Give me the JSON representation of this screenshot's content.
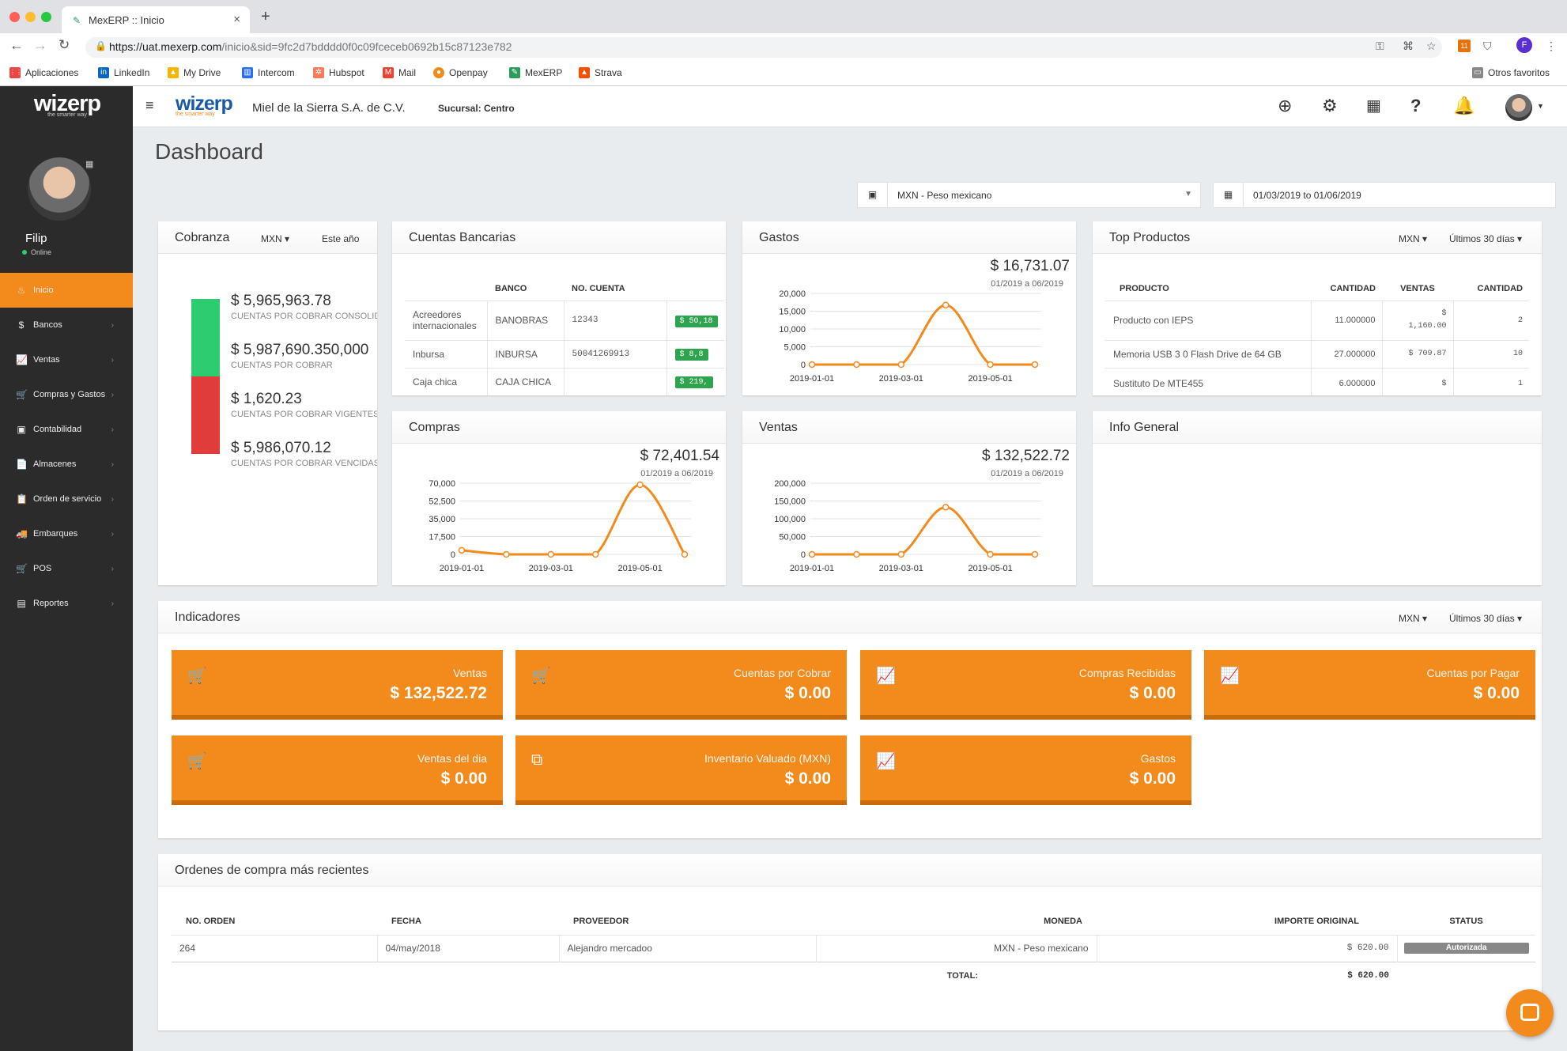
{
  "browser": {
    "tab_title": "MexERP :: Inicio",
    "url_host": "https://uat.mexerp.com",
    "url_path": "/inicio&sid=9fc2d7bdddd0f0c09fceceb0692b15c87123e782",
    "new_tab": "+",
    "close": "×",
    "ext_badge": "11",
    "profile_letter": "F"
  },
  "bookmarks": [
    "Aplicaciones",
    "LinkedIn",
    "My Drive",
    "Intercom",
    "Hubspot",
    "Mail",
    "Openpay",
    "MexERP",
    "Strava"
  ],
  "bookmarks_other": "Otros favoritos",
  "sidebar": {
    "logo": "wizerp",
    "logo_tagline": "the smarter way",
    "user_name": "Filip",
    "user_status": "Online",
    "items": [
      {
        "label": "Inicio",
        "icon": "♨"
      },
      {
        "label": "Bancos",
        "icon": "$"
      },
      {
        "label": "Ventas",
        "icon": "📈"
      },
      {
        "label": "Compras y Gastos",
        "icon": "🛒"
      },
      {
        "label": "Contabilidad",
        "icon": "▣"
      },
      {
        "label": "Almacenes",
        "icon": "📄"
      },
      {
        "label": "Orden de servicio",
        "icon": "📋"
      },
      {
        "label": "Embarques",
        "icon": "🚚"
      },
      {
        "label": "POS",
        "icon": "🛒"
      },
      {
        "label": "Reportes",
        "icon": "▤"
      }
    ]
  },
  "topbar": {
    "logo": "wizerp",
    "logo_tagline": "the smarter way",
    "company": "Miel de la Sierra S.A. de C.V.",
    "branch": "Sucursal: Centro"
  },
  "page_title": "Dashboard",
  "filters": {
    "currency": "MXN - Peso mexicano",
    "date_range": "01/03/2019 to 01/06/2019"
  },
  "cobranza": {
    "title": "Cobranza",
    "currency": "MXN",
    "period": "Este año",
    "items": [
      {
        "value": "$ 5,965,963.78",
        "label": "CUENTAS POR COBRAR CONSOLIDADAS"
      },
      {
        "value": "$ 5,987,690.350,000",
        "label": "CUENTAS POR COBRAR"
      },
      {
        "value": "$ 1,620.23",
        "label": "CUENTAS POR COBRAR VIGENTES"
      },
      {
        "value": "$ 5,986,070.12",
        "label": "CUENTAS POR COBRAR VENCIDAS"
      }
    ],
    "bar_green_fraction": 0.5,
    "colors": {
      "green": "#2ecc71",
      "red": "#e03c3c"
    }
  },
  "cuentas": {
    "title": "Cuentas Bancarias",
    "headers": [
      "BANCO",
      "NO. CUENTA"
    ],
    "rows": [
      {
        "name": "Acreedores internacionales",
        "banco": "BANOBRAS",
        "cuenta": "12343",
        "saldo": "$ 50,18"
      },
      {
        "name": "Inbursa",
        "banco": "INBURSA",
        "cuenta": "50041269913",
        "saldo": "$ 8,8"
      },
      {
        "name": "Caja chica",
        "banco": "CAJA CHICA",
        "cuenta": "",
        "saldo": "$ 219,"
      }
    ]
  },
  "gastos": {
    "title": "Gastos",
    "total": "$ 16,731.07",
    "range": "01/2019 a 06/2019"
  },
  "compras": {
    "title": "Compras",
    "total": "$ 72,401.54",
    "range": "01/2019 a 06/2019"
  },
  "ventas": {
    "title": "Ventas",
    "total": "$ 132,522.72",
    "range": "01/2019 a 06/2019"
  },
  "top_productos": {
    "title": "Top Productos",
    "currency": "MXN",
    "period": "Últimos 30 días",
    "headers": [
      "PRODUCTO",
      "CANTIDAD",
      "VENTAS",
      "CANTIDAD"
    ],
    "rows": [
      {
        "producto": "Producto con IEPS",
        "cantidad": "11.000000",
        "ventas_1": "$",
        "ventas_2": "1,160.00",
        "cantidad2": "2"
      },
      {
        "producto": "Memoria USB 3 0 Flash Drive de 64 GB",
        "cantidad": "27.000000",
        "ventas_1": "$ 709.87",
        "ventas_2": "",
        "cantidad2": "10"
      },
      {
        "producto": "Sustituto De MTE455",
        "cantidad": "6.000000",
        "ventas_1": "$",
        "ventas_2": "",
        "cantidad2": "1"
      }
    ]
  },
  "info_general": {
    "title": "Info General"
  },
  "indicadores": {
    "title": "Indicadores",
    "currency": "MXN",
    "period": "Últimos 30 días",
    "cards": [
      {
        "label": "Ventas",
        "value": "$ 132,522.72",
        "icon": "cart-icon"
      },
      {
        "label": "Cuentas por Cobrar",
        "value": "$ 0.00",
        "icon": "cart-icon"
      },
      {
        "label": "Compras Recibidas",
        "value": "$ 0.00",
        "icon": "chart-icon"
      },
      {
        "label": "Cuentas por Pagar",
        "value": "$ 0.00",
        "icon": "chart-icon"
      },
      {
        "label": "Ventas del dia",
        "value": "$ 0.00",
        "icon": "cart-icon"
      },
      {
        "label": "Inventario Valuado (MXN)",
        "value": "$ 0.00",
        "icon": "copy-icon"
      },
      {
        "label": "Gastos",
        "value": "$ 0.00",
        "icon": "chart-icon"
      }
    ]
  },
  "ordenes": {
    "title": "Ordenes de compra más recientes",
    "headers": [
      "NO. ORDEN",
      "FECHA",
      "PROVEEDOR",
      "MONEDA",
      "IMPORTE ORIGINAL",
      "STATUS"
    ],
    "rows": [
      {
        "no": "264",
        "fecha": "04/may/2018",
        "proveedor": "Alejandro mercadoo",
        "moneda": "MXN - Peso mexicano",
        "importe": "$ 620.00",
        "status": "Autorizada"
      }
    ],
    "total_label": "TOTAL:",
    "total_value": "$ 620.00"
  },
  "chart_data": [
    {
      "type": "line",
      "title": "Gastos",
      "x": [
        "2019-01-01",
        "2019-02-01",
        "2019-03-01",
        "2019-04-01",
        "2019-05-01",
        "2019-06-01"
      ],
      "values": [
        0,
        0,
        0,
        16731.07,
        0,
        0
      ],
      "ylim": [
        0,
        20000
      ],
      "yticks": [
        "20,000",
        "15,000",
        "10,000",
        "5,000",
        "0"
      ],
      "xticks": [
        "2019-01-01",
        "2019-03-01",
        "2019-05-01"
      ],
      "color": "#f28a1c"
    },
    {
      "type": "line",
      "title": "Compras",
      "x": [
        "2019-01-01",
        "2019-02-01",
        "2019-03-01",
        "2019-04-01",
        "2019-05-01",
        "2019-06-01"
      ],
      "values": [
        4000,
        0,
        0,
        0,
        68400,
        0
      ],
      "ylim": [
        0,
        70000
      ],
      "yticks": [
        "70,000",
        "52,500",
        "35,000",
        "17,500",
        "0"
      ],
      "xticks": [
        "2019-01-01",
        "2019-03-01",
        "2019-05-01"
      ],
      "color": "#f28a1c"
    },
    {
      "type": "line",
      "title": "Ventas",
      "x": [
        "2019-01-01",
        "2019-02-01",
        "2019-03-01",
        "2019-04-01",
        "2019-05-01",
        "2019-06-01"
      ],
      "values": [
        0,
        0,
        0,
        132522.72,
        0,
        0
      ],
      "ylim": [
        0,
        200000
      ],
      "yticks": [
        "200,000",
        "150,000",
        "100,000",
        "50,000",
        "0"
      ],
      "xticks": [
        "2019-01-01",
        "2019-03-01",
        "2019-05-01"
      ],
      "color": "#f28a1c"
    }
  ]
}
